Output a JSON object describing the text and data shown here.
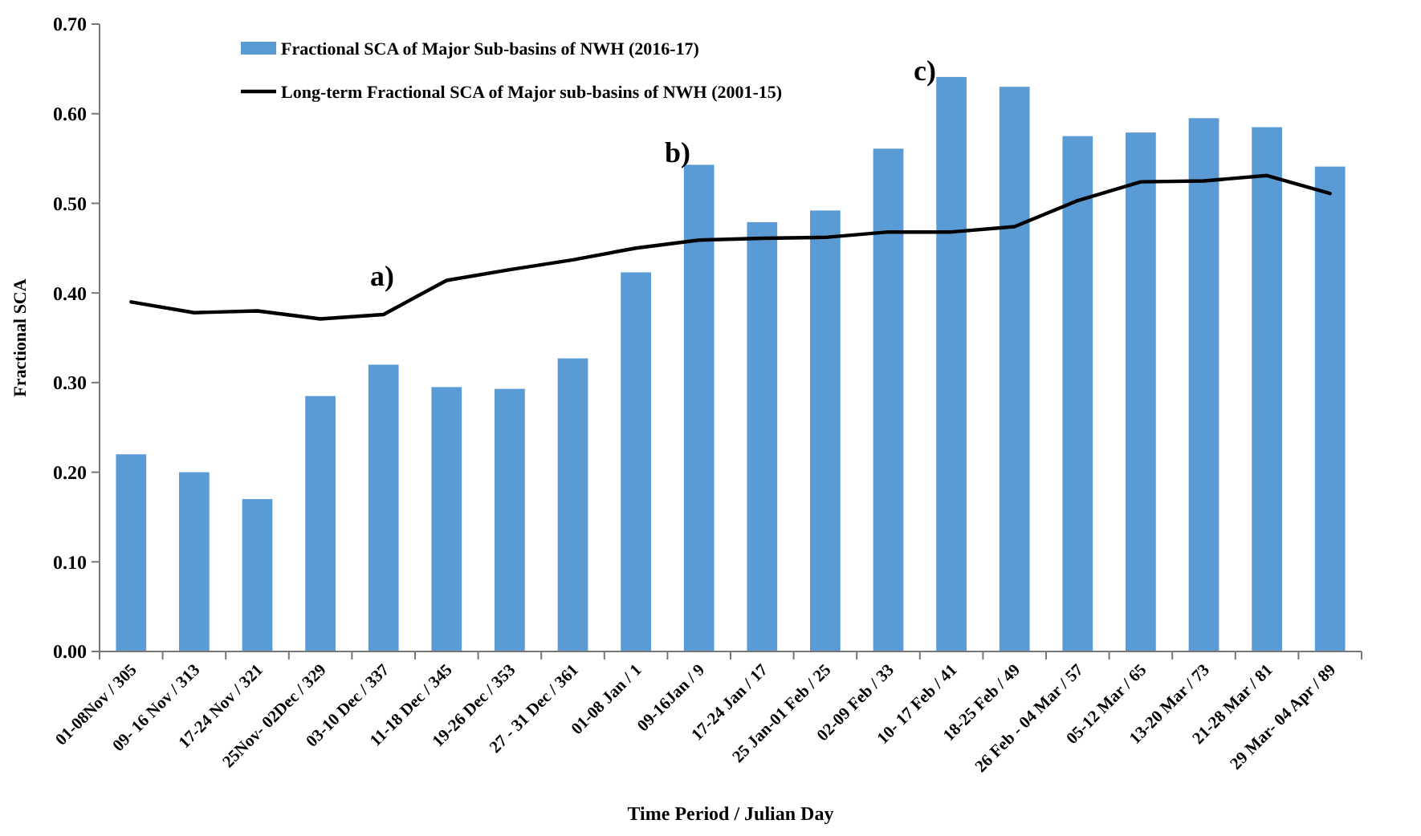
{
  "chart_data": {
    "type": "bar",
    "xlabel": "Time Period  / Julian Day",
    "ylabel": "Fractional SCA",
    "categories": [
      "01-08Nov / 305",
      "09- 16 Nov / 313",
      "17-24 Nov / 321",
      "25Nov- 02Dec / 329",
      "03-10 Dec / 337",
      "11-18 Dec / 345",
      "19-26 Dec / 353",
      "27 - 31 Dec / 361",
      "01-08 Jan / 1",
      "09-16Jan / 9",
      "17-24 Jan / 17",
      "25 Jan-01 Feb / 25",
      "02-09 Feb / 33",
      "10- 17 Feb / 41",
      "18-25 Feb / 49",
      "26 Feb - 04 Mar / 57",
      "05-12 Mar / 65",
      "13-20 Mar / 73",
      "21-28 Mar / 81",
      "29 Mar- 04 Apr / 89"
    ],
    "series": [
      {
        "name": "Fractional SCA of Major Sub-basins  of NWH (2016-17)",
        "color": "#5b9bd5",
        "values": [
          0.22,
          0.2,
          0.17,
          0.285,
          0.32,
          0.295,
          0.293,
          0.327,
          0.423,
          0.543,
          0.479,
          0.492,
          0.561,
          0.641,
          0.63,
          0.575,
          0.579,
          0.595,
          0.585,
          0.541
        ]
      },
      {
        "name": "Long-term Fractional SCA of Major sub-basins of NWH (2001-15)",
        "type": "line",
        "color": "#000000",
        "values": [
          0.39,
          0.378,
          0.38,
          0.371,
          0.376,
          0.414,
          0.426,
          0.437,
          0.45,
          0.459,
          0.461,
          0.462,
          0.468,
          0.468,
          0.474,
          0.503,
          0.524,
          0.525,
          0.531,
          0.511
        ]
      }
    ],
    "ylim": [
      0,
      0.7
    ],
    "yticks": [
      {
        "value": 0,
        "label": "0.00"
      },
      {
        "value": 0.1,
        "label": "0.10"
      },
      {
        "value": 0.2,
        "label": "0.20"
      },
      {
        "value": 0.3,
        "label": "0.30"
      },
      {
        "value": 0.4,
        "label": "0.40"
      },
      {
        "value": 0.5,
        "label": "0.50"
      },
      {
        "value": 0.6,
        "label": "0.60"
      },
      {
        "value": 0.7,
        "label": "0.70"
      }
    ],
    "annotations": [
      "a)",
      "b)",
      "c)"
    ],
    "legend": "top",
    "grid": false,
    "marker": "none",
    "line_style": "solid"
  }
}
